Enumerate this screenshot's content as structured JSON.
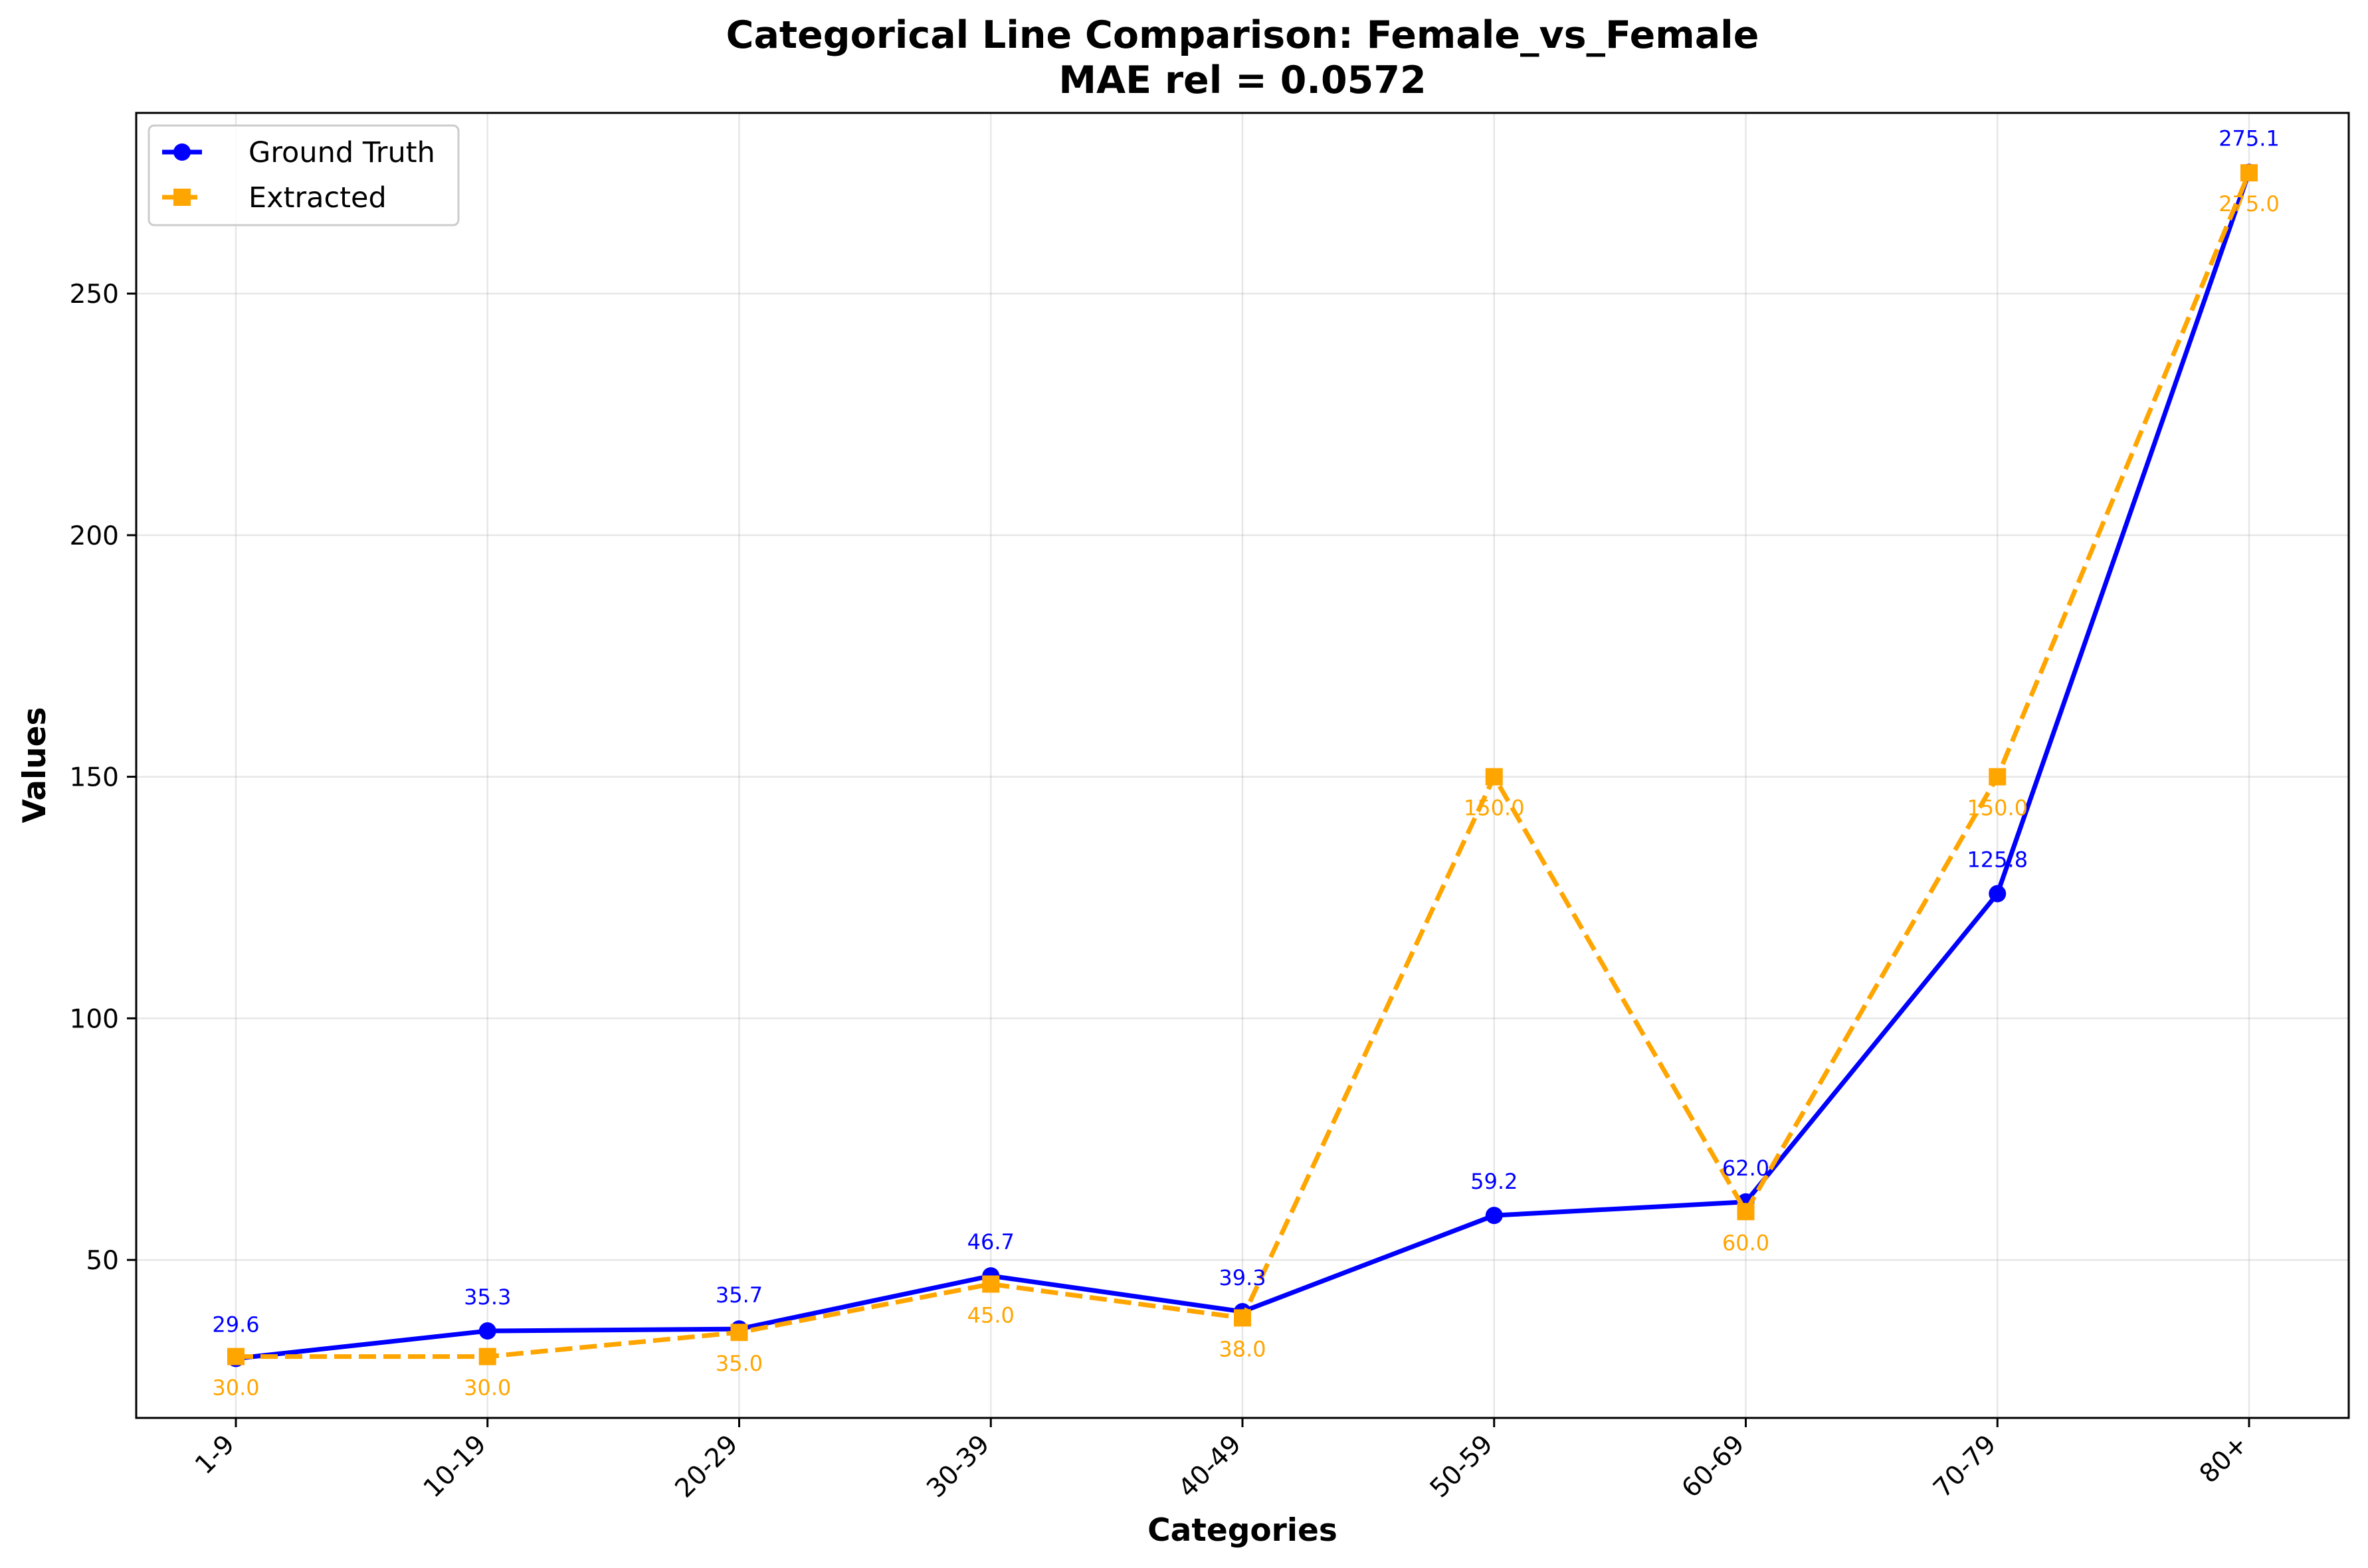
{
  "chart_data": {
    "type": "line",
    "title": "Categorical Line Comparison: Female_vs_Female",
    "subtitle": "MAE rel = 0.0572",
    "xlabel": "Categories",
    "ylabel": "Values",
    "categories": [
      "1-9",
      "10-19",
      "20-29",
      "30-39",
      "40-49",
      "50-59",
      "60-69",
      "70-79",
      "80+"
    ],
    "ylim": [
      17.3,
      287.4
    ],
    "yticks": [
      50,
      100,
      150,
      200,
      250
    ],
    "grid": true,
    "legend_position": "top-left",
    "series": [
      {
        "name": "Ground Truth",
        "color": "#0000ff",
        "line_style": "solid",
        "marker": "circle",
        "values": [
          29.6,
          35.3,
          35.7,
          46.7,
          39.3,
          59.2,
          62.0,
          125.8,
          275.1
        ],
        "labels": [
          "29.6",
          "35.3",
          "35.7",
          "46.7",
          "39.3",
          "59.2",
          "62.0",
          "125.8",
          "275.1"
        ]
      },
      {
        "name": "Extracted",
        "color": "#ffa500",
        "line_style": "dashed",
        "marker": "square",
        "values": [
          30.0,
          30.0,
          35.0,
          45.0,
          38.0,
          150.0,
          60.0,
          150.0,
          275.0
        ],
        "labels": [
          "30.0",
          "30.0",
          "35.0",
          "45.0",
          "38.0",
          "150.0",
          "60.0",
          "150.0",
          "275.0"
        ]
      }
    ]
  }
}
